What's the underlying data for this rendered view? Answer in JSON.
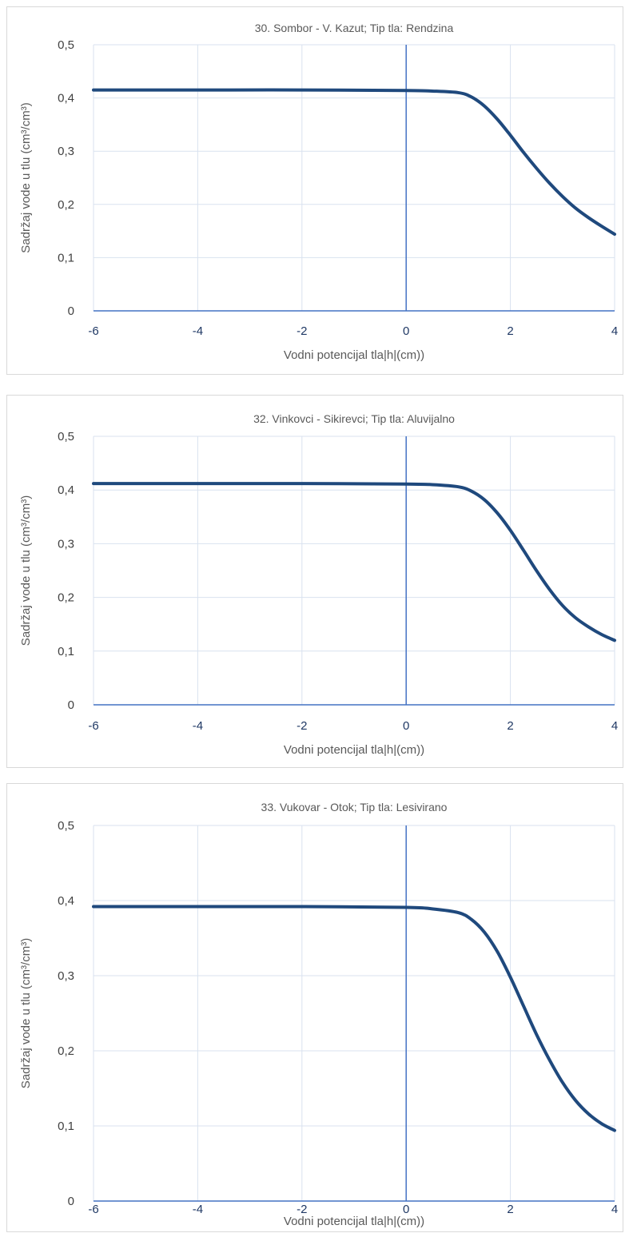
{
  "chart_data": [
    {
      "type": "line",
      "title": "30. Sombor - V. Kazut; Tip tla: Rendzina",
      "xlabel": "Vodni potencijal tla|h|(cm))",
      "ylabel": "Sadržaj vode u tlu  (cm³/cm³)",
      "xlim": [
        -6,
        4
      ],
      "ylim": [
        0,
        0.5
      ],
      "x_ticks": [
        "-6",
        "-4",
        "-2",
        "0",
        "2",
        "4"
      ],
      "y_ticks": [
        "0",
        "0,1",
        "0,2",
        "0,3",
        "0,4",
        "0,5"
      ],
      "grid": true,
      "series": [
        {
          "x": [
            -6,
            -4,
            -2,
            0,
            0.5,
            1.0,
            1.25,
            1.5,
            1.75,
            2.0,
            2.25,
            2.5,
            2.75,
            3.0,
            3.25,
            3.5,
            3.75,
            4.0
          ],
          "values": [
            0.415,
            0.415,
            0.415,
            0.414,
            0.413,
            0.41,
            0.402,
            0.385,
            0.36,
            0.33,
            0.298,
            0.268,
            0.24,
            0.215,
            0.193,
            0.175,
            0.159,
            0.144
          ]
        }
      ]
    },
    {
      "type": "line",
      "title": "32. Vinkovci - Sikirevci; Tip tla: Aluvijalno",
      "xlabel": "Vodni potencijal tla|h|(cm))",
      "ylabel": "Sadržaj vode u tlu  (cm³/cm³)",
      "xlim": [
        -6,
        4
      ],
      "ylim": [
        0,
        0.5
      ],
      "x_ticks": [
        "-6",
        "-4",
        "-2",
        "0",
        "2",
        "4"
      ],
      "y_ticks": [
        "0",
        "0,1",
        "0,2",
        "0,3",
        "0,4",
        "0,5"
      ],
      "grid": true,
      "series": [
        {
          "x": [
            -6,
            -4,
            -2,
            0,
            0.5,
            1.0,
            1.25,
            1.5,
            1.75,
            2.0,
            2.25,
            2.5,
            2.75,
            3.0,
            3.25,
            3.5,
            3.75,
            4.0
          ],
          "values": [
            0.412,
            0.412,
            0.412,
            0.411,
            0.41,
            0.406,
            0.398,
            0.382,
            0.357,
            0.325,
            0.288,
            0.25,
            0.215,
            0.185,
            0.162,
            0.145,
            0.131,
            0.12
          ]
        }
      ]
    },
    {
      "type": "line",
      "title": "33. Vukovar - Otok; Tip tla: Lesivirano",
      "xlabel": "Vodni potencijal tla|h|(cm))",
      "ylabel": "Sadržaj vode u tlu  (cm³/cm³)",
      "xlim": [
        -6,
        4
      ],
      "ylim": [
        0,
        0.5
      ],
      "x_ticks": [
        "-6",
        "-4",
        "-2",
        "0",
        "2",
        "4"
      ],
      "y_ticks": [
        "0",
        "0,1",
        "0,2",
        "0,3",
        "0,4",
        "0,5"
      ],
      "grid": true,
      "series": [
        {
          "x": [
            -6,
            -4,
            -2,
            0,
            0.5,
            1.0,
            1.25,
            1.5,
            1.75,
            2.0,
            2.25,
            2.5,
            2.75,
            3.0,
            3.25,
            3.5,
            3.75,
            4.0
          ],
          "values": [
            0.392,
            0.392,
            0.392,
            0.391,
            0.389,
            0.384,
            0.375,
            0.358,
            0.332,
            0.298,
            0.26,
            0.222,
            0.188,
            0.158,
            0.134,
            0.116,
            0.103,
            0.094
          ]
        }
      ]
    }
  ]
}
